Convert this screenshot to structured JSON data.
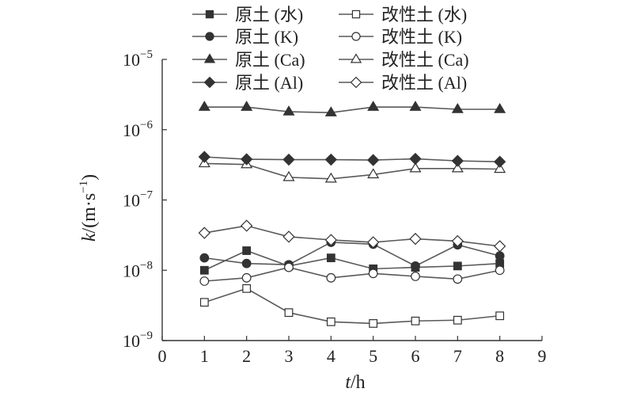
{
  "chart_data": {
    "type": "line",
    "title": "",
    "xlabel": {
      "var": "t",
      "unit": "/h"
    },
    "ylabel": {
      "var": "k",
      "unit": "/(m·s",
      "sup": "−1",
      "close": ")"
    },
    "x_ticks": [
      "0",
      "1",
      "2",
      "3",
      "4",
      "5",
      "6",
      "7",
      "8",
      "9"
    ],
    "xlim": [
      0,
      9
    ],
    "y_scale": "log",
    "ylim": [
      1e-09,
      1e-05
    ],
    "y_ticks": [
      {
        "value": 1e-09,
        "base": "10",
        "exp": "−9"
      },
      {
        "value": 1e-08,
        "base": "10",
        "exp": "−8"
      },
      {
        "value": 1e-07,
        "base": "10",
        "exp": "−7"
      },
      {
        "value": 1e-06,
        "base": "10",
        "exp": "−6"
      },
      {
        "value": 1e-05,
        "base": "10",
        "exp": "−5"
      }
    ],
    "grid": false,
    "legend_position": "top",
    "x": [
      1,
      2,
      3,
      4,
      5,
      6,
      7,
      8
    ],
    "series": [
      {
        "name": "原土 (水)",
        "marker": "square",
        "filled": true,
        "values": [
          1e-08,
          1.9e-08,
          1.15e-08,
          1.5e-08,
          1.05e-08,
          1.1e-08,
          1.15e-08,
          1.25e-08
        ]
      },
      {
        "name": "改性土 (水)",
        "marker": "square",
        "filled": false,
        "values": [
          3.5e-09,
          5.5e-09,
          2.5e-09,
          1.85e-09,
          1.75e-09,
          1.9e-09,
          1.95e-09,
          2.25e-09
        ]
      },
      {
        "name": "原土 (K)",
        "marker": "circle",
        "filled": true,
        "values": [
          1.5e-08,
          1.25e-08,
          1.2e-08,
          2.5e-08,
          2.35e-08,
          1.15e-08,
          2.3e-08,
          1.6e-08
        ]
      },
      {
        "name": "改性土 (K)",
        "marker": "circle",
        "filled": false,
        "values": [
          7e-09,
          7.8e-09,
          1.1e-08,
          7.8e-09,
          9e-09,
          8.2e-09,
          7.5e-09,
          1e-08
        ]
      },
      {
        "name": "原土 (Ca)",
        "marker": "triangle",
        "filled": true,
        "values": [
          2.1e-06,
          2.1e-06,
          1.8e-06,
          1.75e-06,
          2.1e-06,
          2.1e-06,
          1.95e-06,
          1.95e-06
        ]
      },
      {
        "name": "改性土 (Ca)",
        "marker": "triangle",
        "filled": false,
        "values": [
          3.3e-07,
          3.2e-07,
          2.1e-07,
          2e-07,
          2.3e-07,
          2.8e-07,
          2.8e-07,
          2.75e-07
        ]
      },
      {
        "name": "原土 (Al)",
        "marker": "diamond",
        "filled": true,
        "values": [
          4.1e-07,
          3.8e-07,
          3.75e-07,
          3.75e-07,
          3.7e-07,
          3.85e-07,
          3.6e-07,
          3.5e-07
        ]
      },
      {
        "name": "改性土 (Al)",
        "marker": "diamond",
        "filled": false,
        "values": [
          3.4e-08,
          4.3e-08,
          3e-08,
          2.7e-08,
          2.5e-08,
          2.8e-08,
          2.6e-08,
          2.2e-08
        ]
      }
    ],
    "colors": {
      "line": "#595959",
      "marker": "#333333",
      "axis": "#333333",
      "text": "#222222"
    }
  }
}
